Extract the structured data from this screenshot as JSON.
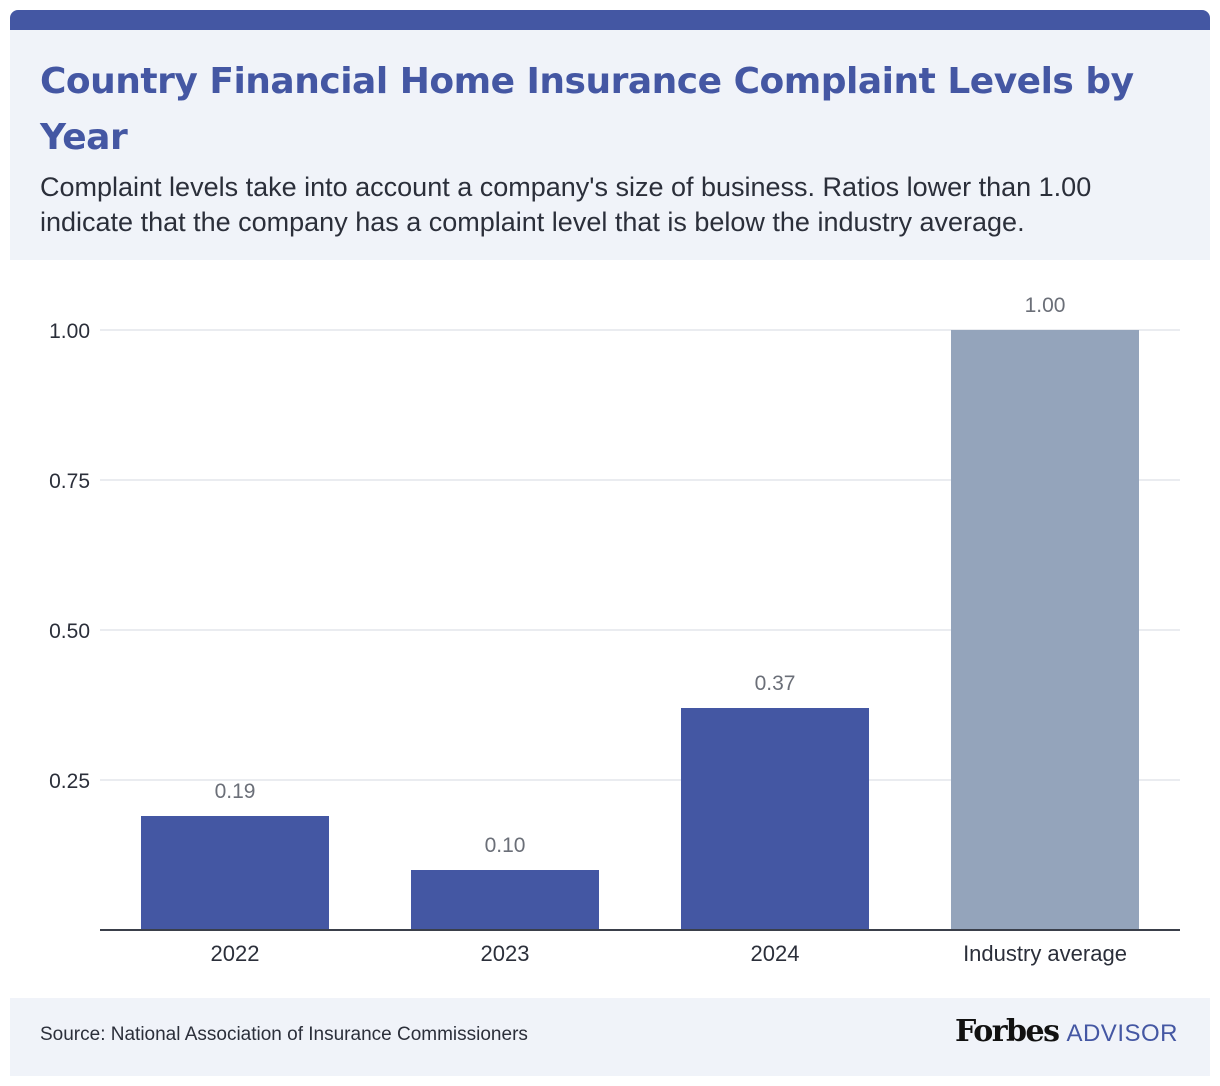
{
  "header": {
    "title": "Country Financial Home Insurance Complaint Levels by Year",
    "subtitle": "Complaint levels take into account a company's size of business. Ratios lower than 1.00 indicate that the company has a complaint level that is below the industry average."
  },
  "chart_data": {
    "type": "bar",
    "categories": [
      "2022",
      "2023",
      "2024",
      "Industry average"
    ],
    "values": [
      0.19,
      0.1,
      0.37,
      1.0
    ],
    "value_labels": [
      "0.19",
      "0.10",
      "0.37",
      "1.00"
    ],
    "yticks": [
      0.25,
      0.5,
      0.75,
      1.0
    ],
    "ytick_labels": [
      "0.25",
      "0.50",
      "0.75",
      "1.00"
    ],
    "ylim": [
      0,
      1
    ],
    "grid": true,
    "colors": {
      "primary": "#4457a3",
      "average": "#94a4bb",
      "gridline": "#e3e6ec",
      "axis": "#3a3f4a",
      "value_label": "#6b6f78",
      "tick_label": "#2b2f3a"
    },
    "highlight_category": "Industry average"
  },
  "footer": {
    "source": "Source: National Association of Insurance Commissioners",
    "brand_name": "Forbes",
    "brand_suffix": "ADVISOR"
  }
}
